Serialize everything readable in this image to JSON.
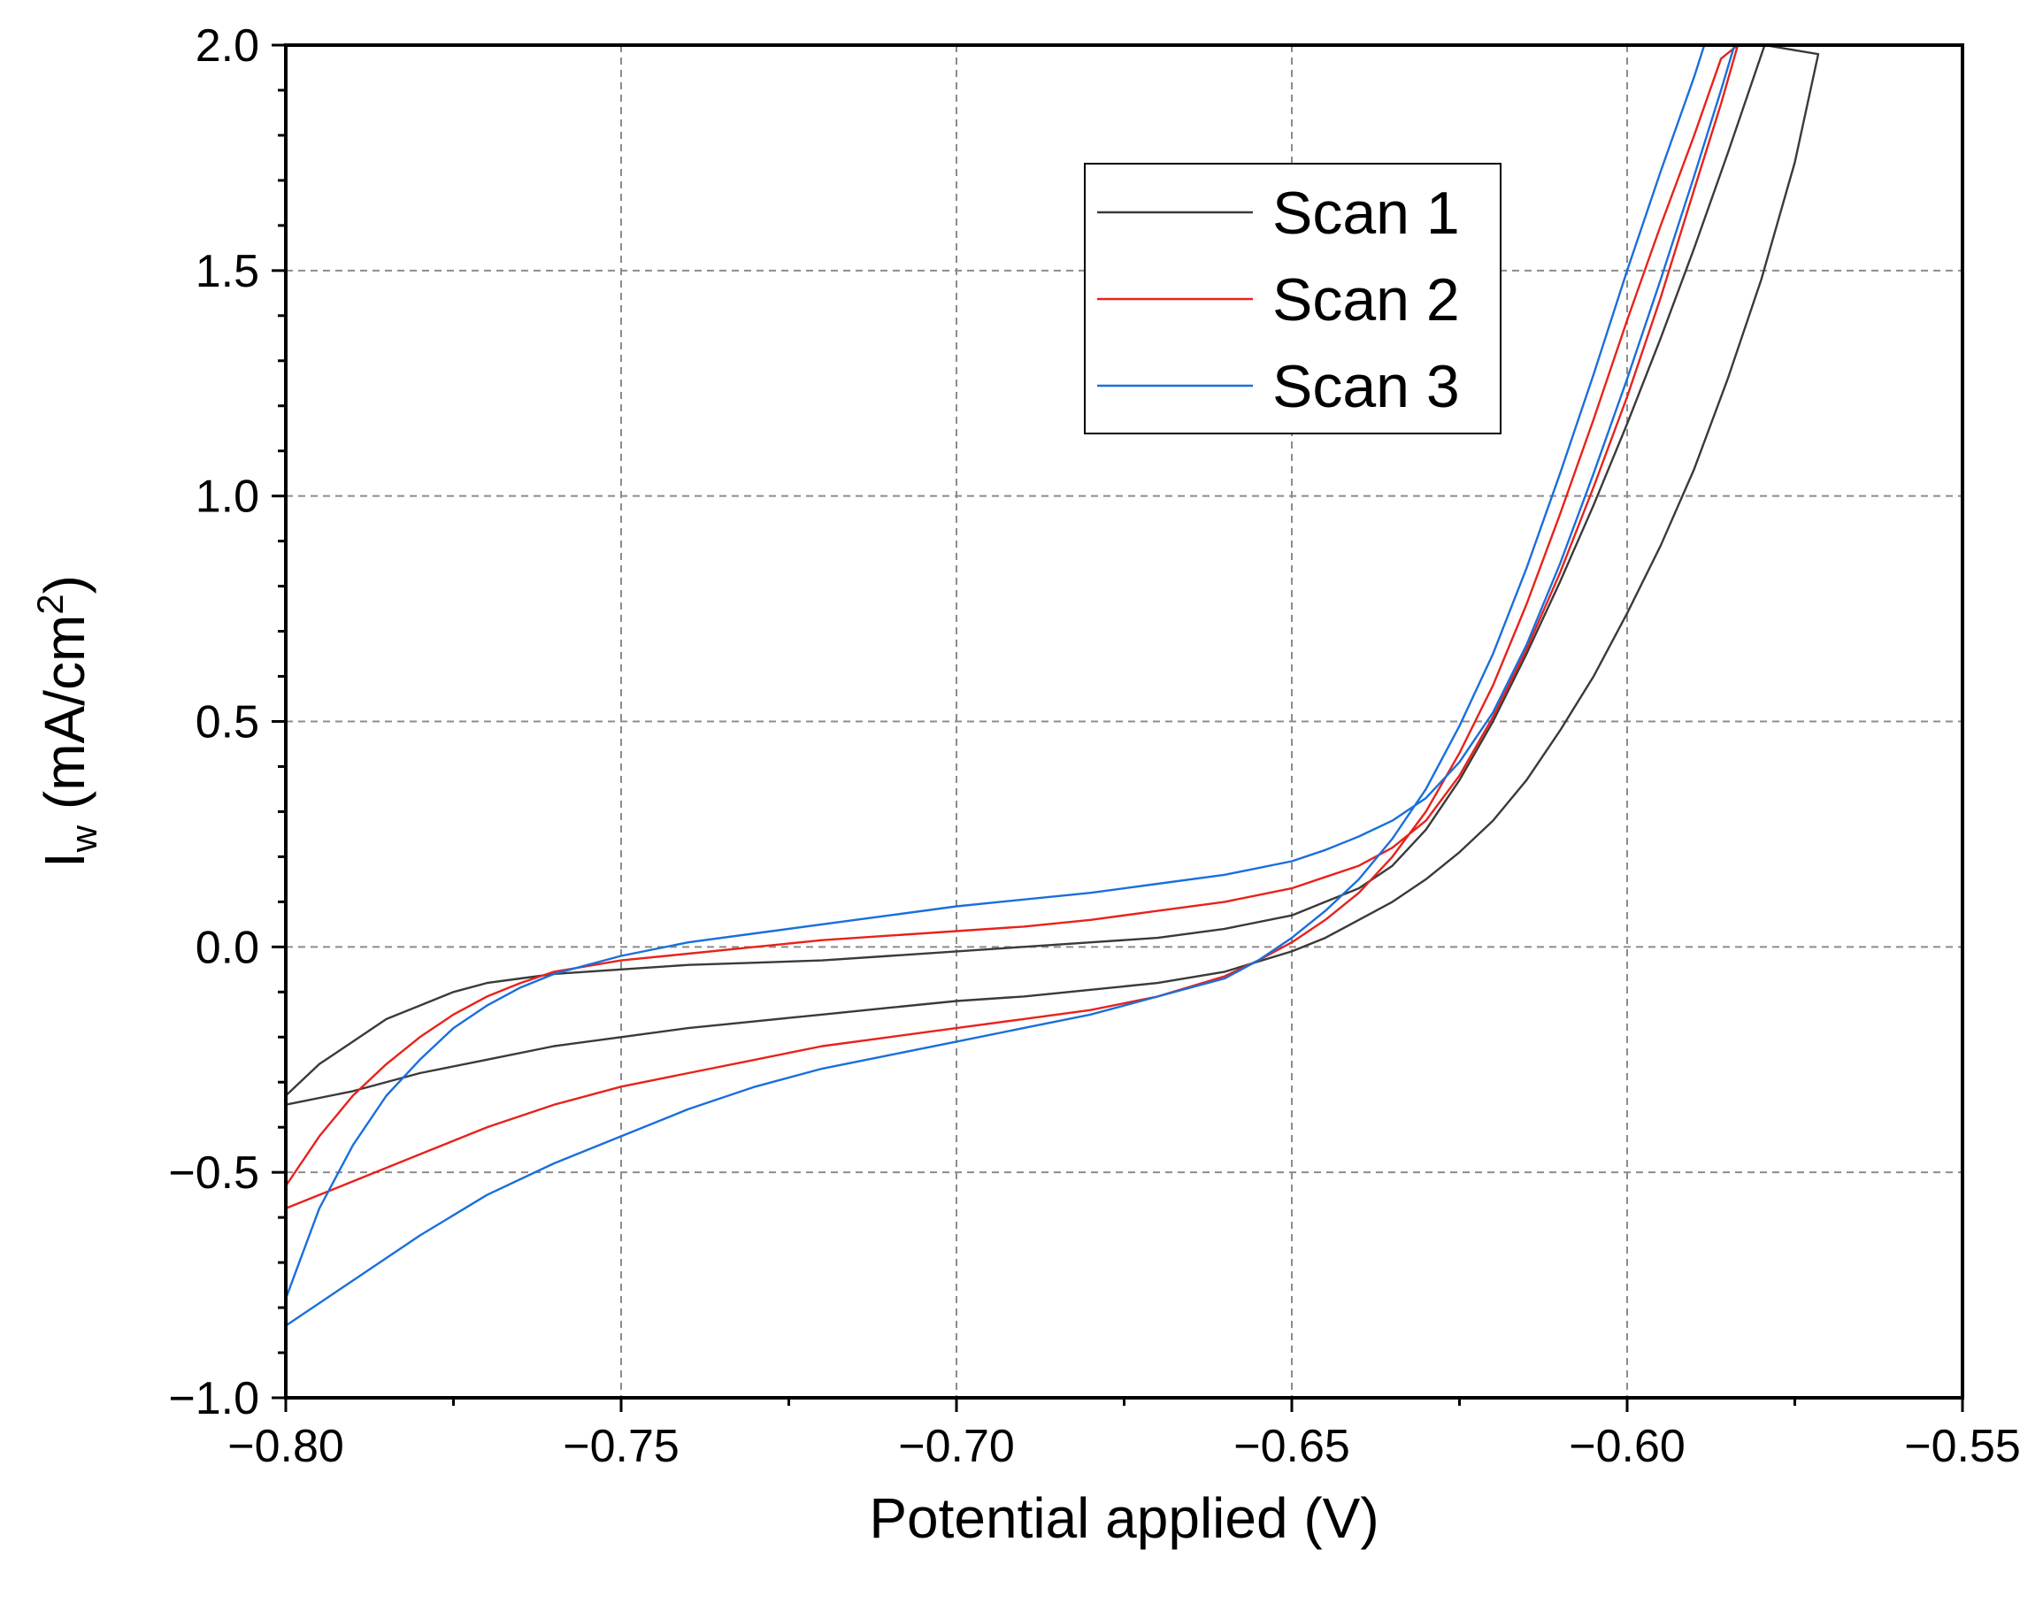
{
  "chart_data": {
    "type": "line",
    "xlabel": "Potential applied (V)",
    "ylabel": {
      "main": "I",
      "sub": "w",
      "rest": " (mA/cm",
      "sup": "2",
      "close": ")"
    },
    "xlim": [
      -0.8,
      -0.55
    ],
    "ylim": [
      -1.0,
      2.0
    ],
    "xticks": [
      -0.8,
      -0.75,
      -0.7,
      -0.65,
      -0.6,
      -0.55
    ],
    "xtick_labels": [
      "−0.80",
      "−0.75",
      "−0.70",
      "−0.65",
      "−0.60",
      "−0.55"
    ],
    "yticks": [
      -1.0,
      -0.5,
      0.0,
      0.5,
      1.0,
      1.5,
      2.0
    ],
    "ytick_labels": [
      "−1.0",
      "−0.5",
      "0.0",
      "0.5",
      "1.0",
      "1.5",
      "2.0"
    ],
    "grid": true,
    "legend_position": "top-right",
    "series": [
      {
        "name": "Scan 1",
        "color": "#3a3a3a",
        "points": [
          [
            -0.8,
            -0.35
          ],
          [
            -0.79,
            -0.32
          ],
          [
            -0.78,
            -0.28
          ],
          [
            -0.77,
            -0.25
          ],
          [
            -0.76,
            -0.22
          ],
          [
            -0.75,
            -0.2
          ],
          [
            -0.74,
            -0.18
          ],
          [
            -0.73,
            -0.165
          ],
          [
            -0.72,
            -0.15
          ],
          [
            -0.71,
            -0.135
          ],
          [
            -0.7,
            -0.12
          ],
          [
            -0.69,
            -0.11
          ],
          [
            -0.68,
            -0.095
          ],
          [
            -0.67,
            -0.08
          ],
          [
            -0.66,
            -0.055
          ],
          [
            -0.65,
            -0.01
          ],
          [
            -0.645,
            0.02
          ],
          [
            -0.64,
            0.06
          ],
          [
            -0.635,
            0.1
          ],
          [
            -0.63,
            0.15
          ],
          [
            -0.625,
            0.21
          ],
          [
            -0.62,
            0.28
          ],
          [
            -0.615,
            0.37
          ],
          [
            -0.61,
            0.48
          ],
          [
            -0.605,
            0.6
          ],
          [
            -0.6,
            0.74
          ],
          [
            -0.595,
            0.89
          ],
          [
            -0.59,
            1.06
          ],
          [
            -0.585,
            1.26
          ],
          [
            -0.58,
            1.48
          ],
          [
            -0.575,
            1.74
          ],
          [
            -0.5715,
            1.98
          ],
          [
            -0.5795,
            2.0
          ],
          [
            -0.585,
            1.76
          ],
          [
            -0.59,
            1.55
          ],
          [
            -0.595,
            1.35
          ],
          [
            -0.6,
            1.16
          ],
          [
            -0.605,
            0.98
          ],
          [
            -0.61,
            0.81
          ],
          [
            -0.615,
            0.65
          ],
          [
            -0.62,
            0.5
          ],
          [
            -0.625,
            0.37
          ],
          [
            -0.63,
            0.26
          ],
          [
            -0.635,
            0.18
          ],
          [
            -0.64,
            0.13
          ],
          [
            -0.645,
            0.1
          ],
          [
            -0.65,
            0.07
          ],
          [
            -0.66,
            0.04
          ],
          [
            -0.67,
            0.02
          ],
          [
            -0.68,
            0.01
          ],
          [
            -0.69,
            0.0
          ],
          [
            -0.7,
            -0.01
          ],
          [
            -0.71,
            -0.02
          ],
          [
            -0.72,
            -0.03
          ],
          [
            -0.73,
            -0.035
          ],
          [
            -0.74,
            -0.04
          ],
          [
            -0.75,
            -0.05
          ],
          [
            -0.76,
            -0.06
          ],
          [
            -0.765,
            -0.07
          ],
          [
            -0.77,
            -0.08
          ],
          [
            -0.775,
            -0.1
          ],
          [
            -0.78,
            -0.13
          ],
          [
            -0.785,
            -0.16
          ],
          [
            -0.79,
            -0.21
          ],
          [
            -0.795,
            -0.26
          ],
          [
            -0.8,
            -0.33
          ]
        ]
      },
      {
        "name": "Scan 2",
        "color": "#e8221c",
        "points": [
          [
            -0.8,
            -0.58
          ],
          [
            -0.79,
            -0.52
          ],
          [
            -0.78,
            -0.46
          ],
          [
            -0.77,
            -0.4
          ],
          [
            -0.76,
            -0.35
          ],
          [
            -0.75,
            -0.31
          ],
          [
            -0.74,
            -0.28
          ],
          [
            -0.73,
            -0.25
          ],
          [
            -0.72,
            -0.22
          ],
          [
            -0.71,
            -0.2
          ],
          [
            -0.7,
            -0.18
          ],
          [
            -0.69,
            -0.16
          ],
          [
            -0.68,
            -0.14
          ],
          [
            -0.67,
            -0.11
          ],
          [
            -0.66,
            -0.065
          ],
          [
            -0.655,
            -0.03
          ],
          [
            -0.65,
            0.01
          ],
          [
            -0.645,
            0.06
          ],
          [
            -0.64,
            0.12
          ],
          [
            -0.635,
            0.2
          ],
          [
            -0.63,
            0.3
          ],
          [
            -0.625,
            0.43
          ],
          [
            -0.62,
            0.58
          ],
          [
            -0.615,
            0.76
          ],
          [
            -0.61,
            0.96
          ],
          [
            -0.605,
            1.17
          ],
          [
            -0.6,
            1.39
          ],
          [
            -0.595,
            1.6
          ],
          [
            -0.59,
            1.8
          ],
          [
            -0.586,
            1.97
          ],
          [
            -0.5835,
            2.0
          ],
          [
            -0.586,
            1.87
          ],
          [
            -0.59,
            1.68
          ],
          [
            -0.595,
            1.44
          ],
          [
            -0.6,
            1.22
          ],
          [
            -0.605,
            1.02
          ],
          [
            -0.61,
            0.83
          ],
          [
            -0.615,
            0.66
          ],
          [
            -0.62,
            0.51
          ],
          [
            -0.625,
            0.38
          ],
          [
            -0.63,
            0.28
          ],
          [
            -0.635,
            0.22
          ],
          [
            -0.64,
            0.18
          ],
          [
            -0.645,
            0.155
          ],
          [
            -0.65,
            0.13
          ],
          [
            -0.66,
            0.1
          ],
          [
            -0.67,
            0.08
          ],
          [
            -0.68,
            0.06
          ],
          [
            -0.69,
            0.045
          ],
          [
            -0.7,
            0.035
          ],
          [
            -0.71,
            0.025
          ],
          [
            -0.72,
            0.015
          ],
          [
            -0.73,
            0.0
          ],
          [
            -0.74,
            -0.015
          ],
          [
            -0.75,
            -0.03
          ],
          [
            -0.76,
            -0.055
          ],
          [
            -0.765,
            -0.08
          ],
          [
            -0.77,
            -0.11
          ],
          [
            -0.775,
            -0.15
          ],
          [
            -0.78,
            -0.2
          ],
          [
            -0.785,
            -0.26
          ],
          [
            -0.79,
            -0.33
          ],
          [
            -0.795,
            -0.42
          ],
          [
            -0.8,
            -0.53
          ]
        ]
      },
      {
        "name": "Scan 3",
        "color": "#1a6fdc",
        "points": [
          [
            -0.8,
            -0.84
          ],
          [
            -0.79,
            -0.74
          ],
          [
            -0.78,
            -0.64
          ],
          [
            -0.77,
            -0.55
          ],
          [
            -0.76,
            -0.48
          ],
          [
            -0.75,
            -0.42
          ],
          [
            -0.74,
            -0.36
          ],
          [
            -0.73,
            -0.31
          ],
          [
            -0.72,
            -0.27
          ],
          [
            -0.71,
            -0.24
          ],
          [
            -0.7,
            -0.21
          ],
          [
            -0.69,
            -0.18
          ],
          [
            -0.68,
            -0.15
          ],
          [
            -0.67,
            -0.11
          ],
          [
            -0.66,
            -0.07
          ],
          [
            -0.655,
            -0.03
          ],
          [
            -0.65,
            0.02
          ],
          [
            -0.645,
            0.08
          ],
          [
            -0.64,
            0.15
          ],
          [
            -0.635,
            0.24
          ],
          [
            -0.63,
            0.35
          ],
          [
            -0.625,
            0.49
          ],
          [
            -0.62,
            0.65
          ],
          [
            -0.615,
            0.84
          ],
          [
            -0.61,
            1.05
          ],
          [
            -0.605,
            1.27
          ],
          [
            -0.6,
            1.5
          ],
          [
            -0.595,
            1.72
          ],
          [
            -0.59,
            1.93
          ],
          [
            -0.5885,
            2.0
          ],
          [
            -0.584,
            2.0
          ],
          [
            -0.586,
            1.9
          ],
          [
            -0.59,
            1.71
          ],
          [
            -0.595,
            1.48
          ],
          [
            -0.6,
            1.26
          ],
          [
            -0.605,
            1.05
          ],
          [
            -0.61,
            0.85
          ],
          [
            -0.615,
            0.67
          ],
          [
            -0.62,
            0.52
          ],
          [
            -0.625,
            0.41
          ],
          [
            -0.63,
            0.33
          ],
          [
            -0.635,
            0.28
          ],
          [
            -0.64,
            0.245
          ],
          [
            -0.645,
            0.215
          ],
          [
            -0.65,
            0.19
          ],
          [
            -0.66,
            0.16
          ],
          [
            -0.67,
            0.14
          ],
          [
            -0.68,
            0.12
          ],
          [
            -0.69,
            0.105
          ],
          [
            -0.7,
            0.09
          ],
          [
            -0.71,
            0.07
          ],
          [
            -0.72,
            0.05
          ],
          [
            -0.73,
            0.03
          ],
          [
            -0.74,
            0.01
          ],
          [
            -0.75,
            -0.02
          ],
          [
            -0.76,
            -0.06
          ],
          [
            -0.765,
            -0.09
          ],
          [
            -0.77,
            -0.13
          ],
          [
            -0.775,
            -0.18
          ],
          [
            -0.78,
            -0.25
          ],
          [
            -0.785,
            -0.33
          ],
          [
            -0.79,
            -0.44
          ],
          [
            -0.795,
            -0.58
          ],
          [
            -0.8,
            -0.78
          ]
        ]
      }
    ]
  }
}
